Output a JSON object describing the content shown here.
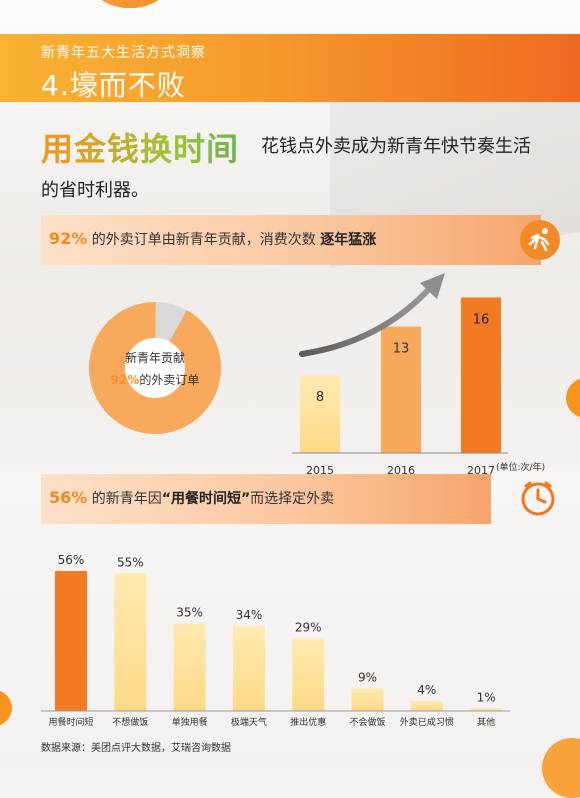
{
  "header": {
    "subtitle": "新青年五大生活方式洞察",
    "title": "4.壕而不败"
  },
  "headline": {
    "highlight": "用金钱换时间",
    "line1": "花钱点外卖成为新青年快节奏生活",
    "line2": "的省时利器。"
  },
  "section1": {
    "pct": "92%",
    "text": " 的外卖订单由新青年贡献，消费次数 ",
    "emphasis": "逐年猛涨",
    "icon": "running-person-icon"
  },
  "donut": {
    "label1": "新青年贡献",
    "pct": "92%",
    "label2": "的外卖订单",
    "share": 0.92
  },
  "section2": {
    "pct": "56%",
    "text1": " 的新青年因",
    "emphasis": "“用餐时间短”",
    "text2": "而选择定外卖",
    "icon": "clock-icon"
  },
  "source": "数据来源：美团点评大数据，艾瑞咨询数据",
  "colors": {
    "orange": "#f6922a",
    "deep_orange": "#f27a22",
    "light_yellow": "#fde4a6",
    "donut_grey": "#d9d9d9"
  },
  "chart_data": [
    {
      "type": "pie",
      "values": [
        92,
        8
      ],
      "categories": [
        "新青年",
        ""
      ]
    },
    {
      "type": "bar",
      "categories": [
        "2015",
        "2016",
        "2017"
      ],
      "values": [
        8,
        13,
        16
      ],
      "unit_note": "(单位:次/年)",
      "ylim": [
        0,
        18
      ]
    },
    {
      "type": "bar",
      "categories": [
        "用餐时间短",
        "不想做饭",
        "单独用餐",
        "极端天气",
        "推出优惠",
        "不会做饭",
        "外卖已成习惯",
        "其他"
      ],
      "values": [
        56,
        55,
        35,
        34,
        29,
        9,
        4,
        1
      ],
      "labels": [
        "56%",
        "55%",
        "35%",
        "34%",
        "29%",
        "9%",
        "4%",
        "1%"
      ],
      "ylim": [
        0,
        60
      ]
    }
  ]
}
